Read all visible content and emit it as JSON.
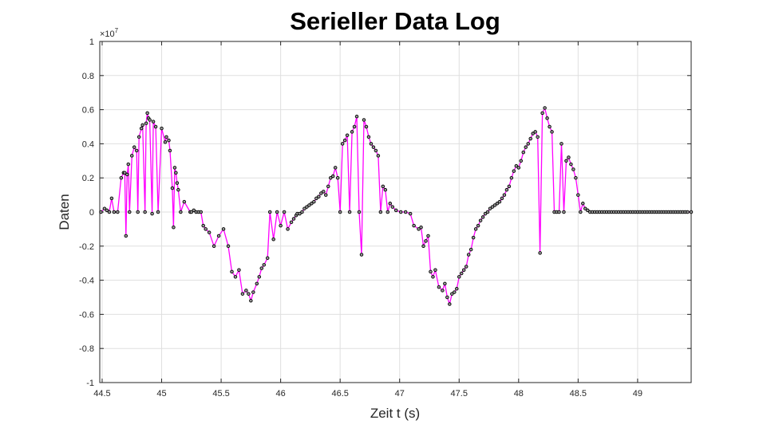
{
  "chart_data": {
    "type": "line",
    "title": "Serieller Data Log",
    "xlabel": "Zeit t (s)",
    "ylabel": "Daten",
    "y_exponent_base": "×10",
    "y_exponent_power": "7",
    "xlim": [
      44.48,
      49.45
    ],
    "ylim": [
      -1,
      1
    ],
    "xticks": [
      44.5,
      45,
      45.5,
      46,
      46.5,
      47,
      47.5,
      48,
      48.5,
      49
    ],
    "xtick_labels": [
      "44.5",
      "45",
      "45.5",
      "46",
      "46.5",
      "47",
      "47.5",
      "48",
      "48.5",
      "49"
    ],
    "yticks": [
      -1,
      -0.8,
      -0.6,
      -0.4,
      -0.2,
      0,
      0.2,
      0.4,
      0.6,
      0.8,
      1
    ],
    "ytick_labels": [
      "-1",
      "-0.8",
      "-0.6",
      "-0.4",
      "-0.2",
      "0",
      "0.2",
      "0.4",
      "0.6",
      "0.8",
      "1"
    ],
    "grid": true,
    "colors": {
      "line": "#ff00ff",
      "marker": "#000000"
    },
    "series": [
      {
        "x": [
          44.49,
          44.52,
          44.54,
          44.56,
          44.58,
          44.6,
          44.63,
          44.66,
          44.68,
          44.69,
          44.7,
          44.71,
          44.72,
          44.73,
          44.75,
          44.77,
          44.79,
          44.8,
          44.81,
          44.83,
          44.84,
          44.86,
          44.87,
          44.88,
          44.89,
          44.9,
          44.92,
          44.93,
          44.95,
          44.97,
          45.0,
          45.03,
          45.04,
          45.06,
          45.07,
          45.09,
          45.1,
          45.11,
          45.12,
          45.13,
          45.14,
          45.16,
          45.19,
          45.24,
          45.25,
          45.27,
          45.29,
          45.31,
          45.33,
          45.35,
          45.37,
          45.4,
          45.44,
          45.48,
          45.52,
          45.56,
          45.59,
          45.62,
          45.65,
          45.68,
          45.71,
          45.73,
          45.75,
          45.77,
          45.8,
          45.82,
          45.84,
          45.86,
          45.89,
          45.91,
          45.94,
          45.97,
          46.0,
          46.03,
          46.06,
          46.09,
          46.11,
          46.13,
          46.14,
          46.16,
          46.18,
          46.2,
          46.22,
          46.24,
          46.26,
          46.28,
          46.3,
          46.32,
          46.34,
          46.36,
          46.38,
          46.4,
          46.42,
          46.44,
          46.46,
          46.48,
          46.5,
          46.52,
          46.54,
          46.56,
          46.58,
          46.6,
          46.62,
          46.64,
          46.66,
          46.68,
          46.7,
          46.72,
          46.74,
          46.76,
          46.78,
          46.8,
          46.82,
          46.84,
          46.86,
          46.88,
          46.9,
          46.92,
          46.94,
          46.97,
          47.01,
          47.05,
          47.09,
          47.12,
          47.16,
          47.18,
          47.2,
          47.22,
          47.24,
          47.26,
          47.28,
          47.3,
          47.33,
          47.36,
          47.38,
          47.4,
          47.42,
          47.44,
          47.46,
          47.48,
          47.5,
          47.52,
          47.54,
          47.56,
          47.58,
          47.6,
          47.62,
          47.64,
          47.66,
          47.68,
          47.7,
          47.72,
          47.74,
          47.76,
          47.78,
          47.8,
          47.82,
          47.84,
          47.86,
          47.88,
          47.9,
          47.92,
          47.94,
          47.96,
          47.98,
          48.0,
          48.02,
          48.04,
          48.06,
          48.08,
          48.1,
          48.12,
          48.14,
          48.16,
          48.18,
          48.2,
          48.22,
          48.24,
          48.26,
          48.28,
          48.3,
          48.32,
          48.34,
          48.36,
          48.38,
          48.4,
          48.42,
          48.44,
          48.46,
          48.48,
          48.5,
          48.52,
          48.54,
          48.56,
          48.58,
          48.6,
          48.62,
          48.64,
          48.66,
          48.68,
          48.7,
          48.72,
          48.74,
          48.76,
          48.78,
          48.8,
          48.82,
          48.84,
          48.86,
          48.88,
          48.9,
          48.92,
          48.94,
          48.96,
          48.98,
          49.0,
          49.02,
          49.04,
          49.06,
          49.08,
          49.1,
          49.12,
          49.14,
          49.16,
          49.18,
          49.2,
          49.22,
          49.24,
          49.26,
          49.28,
          49.3,
          49.32,
          49.34,
          49.36,
          49.38,
          49.4,
          49.42,
          49.45
        ],
        "y": [
          0.0,
          0.02,
          0.01,
          0.0,
          0.08,
          0.0,
          0.0,
          0.2,
          0.23,
          0.23,
          -0.14,
          0.22,
          0.28,
          0.0,
          0.33,
          0.38,
          0.36,
          0.0,
          0.44,
          0.49,
          0.51,
          0.0,
          0.52,
          0.58,
          0.55,
          0.54,
          -0.01,
          0.53,
          0.5,
          0.0,
          0.49,
          0.41,
          0.44,
          0.42,
          0.36,
          0.14,
          -0.09,
          0.26,
          0.23,
          0.17,
          0.13,
          0.0,
          0.06,
          0.0,
          0.0,
          0.01,
          0.0,
          0.0,
          0.0,
          -0.08,
          -0.1,
          -0.12,
          -0.2,
          -0.14,
          -0.1,
          -0.2,
          -0.35,
          -0.38,
          -0.34,
          -0.48,
          -0.46,
          -0.48,
          -0.52,
          -0.47,
          -0.42,
          -0.38,
          -0.33,
          -0.31,
          -0.27,
          0.0,
          -0.16,
          0.0,
          -0.08,
          0.0,
          -0.1,
          -0.06,
          -0.04,
          -0.02,
          -0.01,
          -0.01,
          0.0,
          0.02,
          0.03,
          0.04,
          0.05,
          0.06,
          0.08,
          0.09,
          0.11,
          0.12,
          0.1,
          0.15,
          0.2,
          0.21,
          0.26,
          0.2,
          0.0,
          0.4,
          0.42,
          0.45,
          0.0,
          0.47,
          0.5,
          0.56,
          0.0,
          -0.25,
          0.54,
          0.5,
          0.44,
          0.4,
          0.38,
          0.36,
          0.33,
          0.0,
          0.15,
          0.13,
          0.0,
          0.05,
          0.03,
          0.01,
          0.0,
          0.0,
          -0.01,
          -0.08,
          -0.1,
          -0.09,
          -0.2,
          -0.17,
          -0.14,
          -0.35,
          -0.38,
          -0.34,
          -0.44,
          -0.46,
          -0.42,
          -0.5,
          -0.54,
          -0.48,
          -0.47,
          -0.45,
          -0.38,
          -0.36,
          -0.34,
          -0.32,
          -0.25,
          -0.22,
          -0.15,
          -0.1,
          -0.08,
          -0.05,
          -0.03,
          -0.01,
          0.0,
          0.02,
          0.03,
          0.04,
          0.05,
          0.06,
          0.08,
          0.1,
          0.13,
          0.15,
          0.2,
          0.24,
          0.27,
          0.26,
          0.3,
          0.35,
          0.38,
          0.4,
          0.43,
          0.46,
          0.47,
          0.44,
          -0.24,
          0.58,
          0.61,
          0.55,
          0.5,
          0.47,
          0.0,
          0.0,
          0.0,
          0.4,
          0.0,
          0.3,
          0.32,
          0.28,
          0.25,
          0.2,
          0.1,
          0.0,
          0.05,
          0.02,
          0.01,
          0.0,
          0.0,
          0.0,
          0.0,
          0.0,
          0.0,
          0.0,
          0.0,
          0.0,
          0.0,
          0.0,
          0.0,
          0.0,
          0.0,
          0.0,
          0.0,
          0.0,
          0.0,
          0.0,
          0.0,
          0.0,
          0.0,
          0.0,
          0.0,
          0.0,
          0.0,
          0.0,
          0.0,
          0.0,
          0.0,
          0.0,
          0.0,
          0.0,
          0.0,
          0.0,
          0.0,
          0.0,
          0.0,
          0.0,
          0.0,
          0.0,
          0.0,
          0.0
        ]
      }
    ]
  }
}
